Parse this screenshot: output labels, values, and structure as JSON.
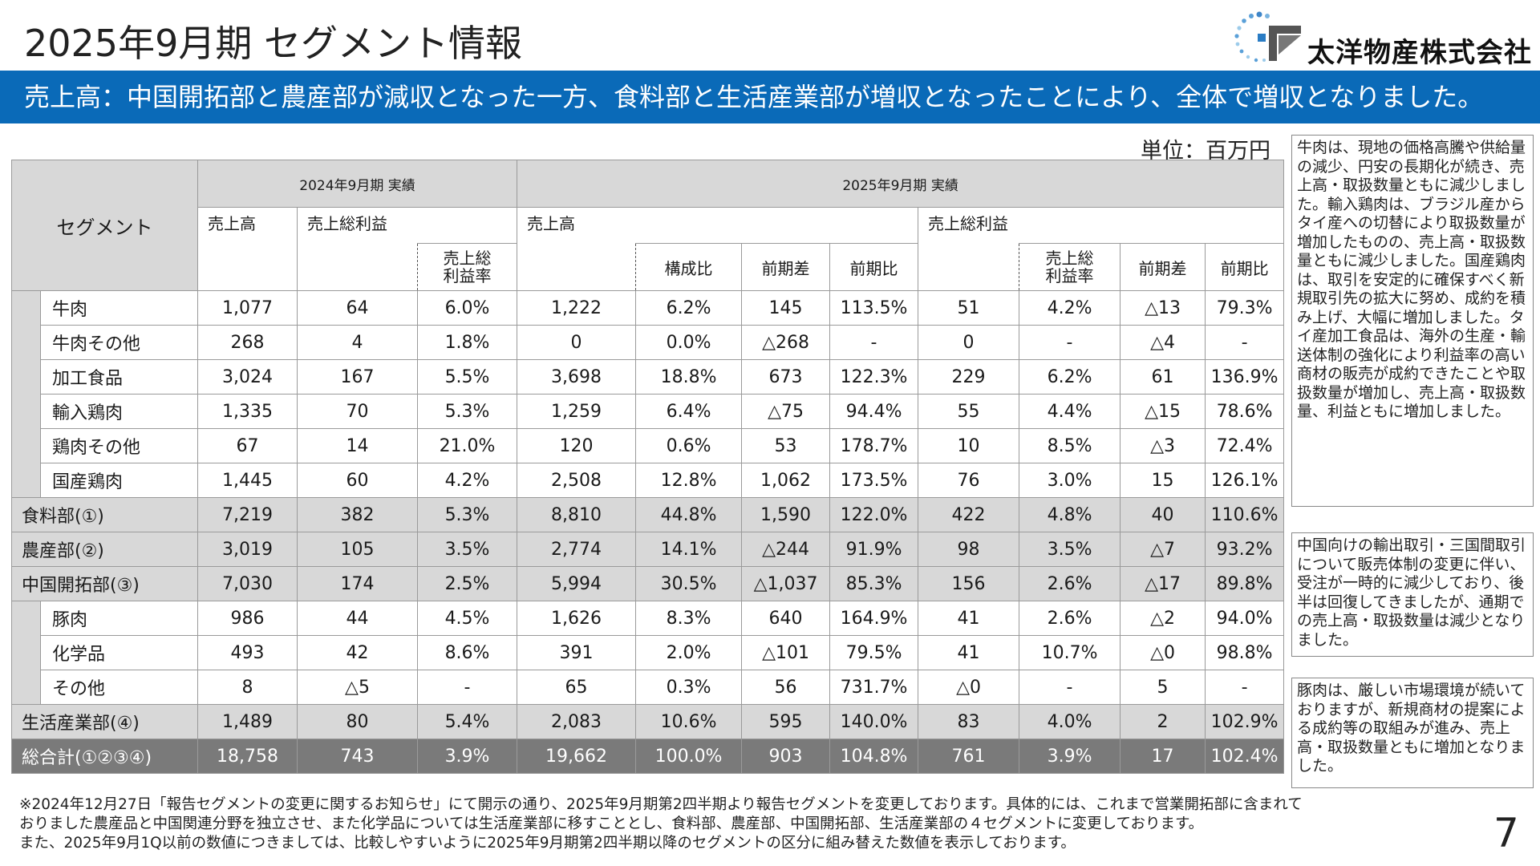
{
  "header": {
    "title": "2025年9月期 セグメント情報",
    "company_name": "太洋物産株式会社"
  },
  "banner": {
    "text": "売上高：中国開拓部と農産部が減収となった一方、食料部と生活産業部が増収となったことにより、全体で増収となりました。"
  },
  "unit": "単位：百万円",
  "table": {
    "h_segment": "セグメント",
    "h_2024": "2024年9月期 実績",
    "h_2025": "2025年9月期 実績",
    "h_sales": "売上高",
    "h_gross": "売上総利益",
    "h_gross_rate_line1": "売上総",
    "h_gross_rate_line2": "利益率",
    "h_sales_2025": "売上高",
    "h_gross_2025": "売上総利益",
    "h_comp": "構成比",
    "h_diff": "前期差",
    "h_ratio": "前期比",
    "h_rate2_line1": "売上総",
    "h_rate2_line2": "利益率",
    "h_diff2": "前期差",
    "h_ratio2": "前期比",
    "rows": [
      {
        "name": "牛肉",
        "c": [
          "1,077",
          "64",
          "6.0%",
          "1,222",
          "6.2%",
          "145",
          "113.5%",
          "51",
          "4.2%",
          "△13",
          "79.3%"
        ]
      },
      {
        "name": "牛肉その他",
        "c": [
          "268",
          "4",
          "1.8%",
          "0",
          "0.0%",
          "△268",
          "-",
          "0",
          "-",
          "△4",
          "-"
        ]
      },
      {
        "name": "加工食品",
        "c": [
          "3,024",
          "167",
          "5.5%",
          "3,698",
          "18.8%",
          "673",
          "122.3%",
          "229",
          "6.2%",
          "61",
          "136.9%"
        ]
      },
      {
        "name": "輸入鶏肉",
        "c": [
          "1,335",
          "70",
          "5.3%",
          "1,259",
          "6.4%",
          "△75",
          "94.4%",
          "55",
          "4.4%",
          "△15",
          "78.6%"
        ]
      },
      {
        "name": "鶏肉その他",
        "c": [
          "67",
          "14",
          "21.0%",
          "120",
          "0.6%",
          "53",
          "178.7%",
          "10",
          "8.5%",
          "△3",
          "72.4%"
        ]
      },
      {
        "name": "国産鶏肉",
        "c": [
          "1,445",
          "60",
          "4.2%",
          "2,508",
          "12.8%",
          "1,062",
          "173.5%",
          "76",
          "3.0%",
          "15",
          "126.1%"
        ]
      },
      {
        "name": "食料部(①)",
        "c": [
          "7,219",
          "382",
          "5.3%",
          "8,810",
          "44.8%",
          "1,590",
          "122.0%",
          "422",
          "4.8%",
          "40",
          "110.6%"
        ]
      },
      {
        "name": "農産部(②)",
        "c": [
          "3,019",
          "105",
          "3.5%",
          "2,774",
          "14.1%",
          "△244",
          "91.9%",
          "98",
          "3.5%",
          "△7",
          "93.2%"
        ]
      },
      {
        "name": "中国開拓部(③)",
        "c": [
          "7,030",
          "174",
          "2.5%",
          "5,994",
          "30.5%",
          "△1,037",
          "85.3%",
          "156",
          "2.6%",
          "△17",
          "89.8%"
        ]
      },
      {
        "name": "豚肉",
        "c": [
          "986",
          "44",
          "4.5%",
          "1,626",
          "8.3%",
          "640",
          "164.9%",
          "41",
          "2.6%",
          "△2",
          "94.0%"
        ]
      },
      {
        "name": "化学品",
        "c": [
          "493",
          "42",
          "8.6%",
          "391",
          "2.0%",
          "△101",
          "79.5%",
          "41",
          "10.7%",
          "△0",
          "98.8%"
        ]
      },
      {
        "name": "その他",
        "c": [
          "8",
          "△5",
          "-",
          "65",
          "0.3%",
          "56",
          "731.7%",
          "△0",
          "-",
          "5",
          "-"
        ]
      },
      {
        "name": "生活産業部(④)",
        "c": [
          "1,489",
          "80",
          "5.4%",
          "2,083",
          "10.6%",
          "595",
          "140.0%",
          "83",
          "4.0%",
          "2",
          "102.9%"
        ]
      },
      {
        "name": "総合計(①②③④)",
        "c": [
          "18,758",
          "743",
          "3.9%",
          "19,662",
          "100.0%",
          "903",
          "104.8%",
          "761",
          "3.9%",
          "17",
          "102.4%"
        ]
      }
    ]
  },
  "notes": {
    "food": "牛肉は、現地の価格高騰や供給量の減少、円安の長期化が続き、売上高・取扱数量ともに減少しました。輸入鶏肉は、ブラジル産からタイ産への切替により取扱数量が増加したものの、売上高・取扱数量ともに減少しました。国産鶏肉は、取引を安定的に確保すべく新規取引先の拡大に努め、成約を積み上げ、大幅に増加しました。タイ産加工食品は、海外の生産・輸送体制の強化により利益率の高い商材の販売が成約できたことや取扱数量が増加し、売上高・取扱数量、利益ともに増加しました。",
    "china": "中国向けの輸出取引・三国間取引について販売体制の変更に伴い、受注が一時的に減少しており、後半は回復してきましたが、通期での売上高・取扱数量は減少となりました。",
    "life": "豚肉は、厳しい市場環境が続いておりますが、新規商材の提案による成約等の取組みが進み、売上高・取扱数量ともに増加となりました。"
  },
  "footnote": {
    "line1": "※2024年12月27日「報告セグメントの変更に関するお知らせ」にて開示の通り、2025年9月期第2四半期より報告セグメントを変更しております。具体的には、これまで営業開拓部に含まれて",
    "line2": "おりました農産品と中国関連分野を独立させ、また化学品については生活産業部に移すこととし、食料部、農産部、中国開拓部、生活産業部の４セグメントに変更しております。",
    "line3": "また、2025年9月1Q以前の数値につきましては、比較しやすいように2025年9月期第2四半期以降のセグメントの区分に組み替えた数値を表示しております。"
  },
  "page_number": "7",
  "colors": {
    "banner": "#0a6ab8",
    "header_gray": "#d8d8d8",
    "total_gray": "#7a7a7a",
    "highlight": "#d4eefa"
  }
}
